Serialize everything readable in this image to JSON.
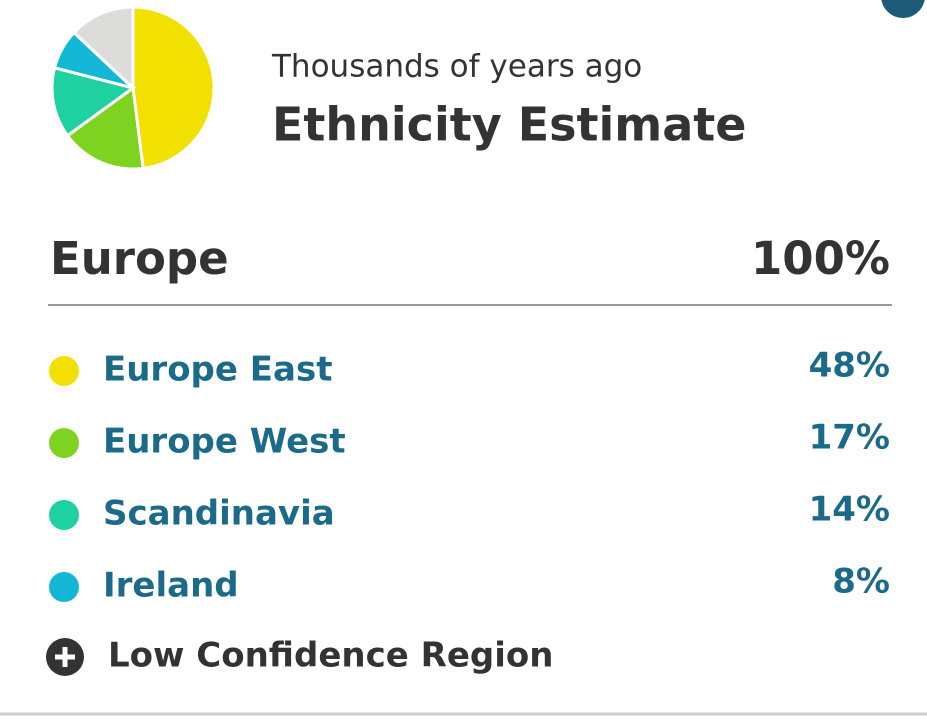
{
  "header": {
    "subtitle": "Thousands of years ago",
    "title": "Ethnicity Estimate"
  },
  "region": {
    "name": "Europe",
    "value_label": "100%"
  },
  "items": [
    {
      "name": "Europe East",
      "value": 48,
      "value_label": "48%",
      "color": "#f2e000"
    },
    {
      "name": "Europe West",
      "value": 17,
      "value_label": "17%",
      "color": "#7ed321"
    },
    {
      "name": "Scandinavia",
      "value": 14,
      "value_label": "14%",
      "color": "#1fd1a0"
    },
    {
      "name": "Ireland",
      "value": 8,
      "value_label": "8%",
      "color": "#12b8d6"
    }
  ],
  "low_confidence": {
    "label": "Low Confidence Region",
    "value": 13,
    "color": "#dcdcda"
  }
}
